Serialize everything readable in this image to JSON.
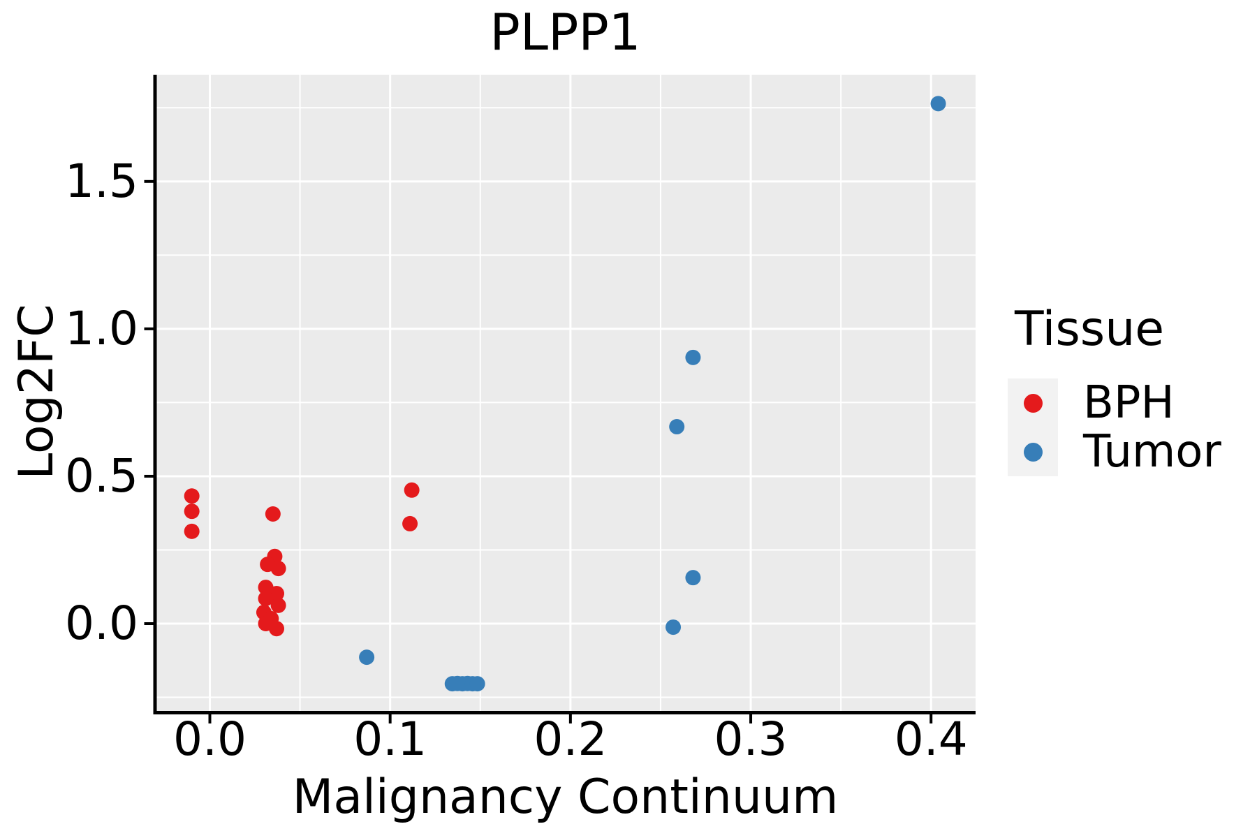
{
  "chart_data": {
    "type": "scatter",
    "title": "PLPP1",
    "xlabel": "Malignancy Continuum",
    "ylabel": "Log2FC",
    "legend_title": "Tissue",
    "legend_position": "right",
    "grid": true,
    "xlim": [
      -0.0304,
      0.4247
    ],
    "ylim": [
      -0.302,
      1.862
    ],
    "x_ticks": [
      0.0,
      0.1,
      0.2,
      0.3,
      0.4
    ],
    "x_tick_labels": [
      "0.0",
      "0.1",
      "0.2",
      "0.3",
      "0.4"
    ],
    "y_ticks": [
      0.0,
      0.5,
      1.0,
      1.5
    ],
    "y_tick_labels": [
      "0.0",
      "0.5",
      "1.0",
      "1.5"
    ],
    "x_minor_ticks": [
      0.05,
      0.15,
      0.25,
      0.35
    ],
    "y_minor_ticks": [
      -0.25,
      0.25,
      0.75,
      1.25,
      1.75
    ],
    "series": [
      {
        "name": "BPH",
        "color": "#E41A1C",
        "points": [
          [
            -0.01,
            0.433
          ],
          [
            -0.01,
            0.381
          ],
          [
            -0.01,
            0.313
          ],
          [
            0.035,
            0.372
          ],
          [
            0.036,
            0.228
          ],
          [
            0.032,
            0.201
          ],
          [
            0.038,
            0.187
          ],
          [
            0.031,
            0.123
          ],
          [
            0.037,
            0.102
          ],
          [
            0.031,
            0.085
          ],
          [
            0.038,
            0.062
          ],
          [
            0.03,
            0.038
          ],
          [
            0.034,
            0.017
          ],
          [
            0.031,
            0.0
          ],
          [
            0.037,
            -0.017
          ],
          [
            0.112,
            0.453
          ],
          [
            0.111,
            0.339
          ]
        ]
      },
      {
        "name": "Tumor",
        "color": "#377EB8",
        "points": [
          [
            0.087,
            -0.114
          ],
          [
            0.1345,
            -0.204
          ],
          [
            0.1373,
            -0.203
          ],
          [
            0.1401,
            -0.204
          ],
          [
            0.1429,
            -0.203
          ],
          [
            0.1457,
            -0.204
          ],
          [
            0.1484,
            -0.204
          ],
          [
            0.259,
            0.668
          ],
          [
            0.268,
            0.903
          ],
          [
            0.268,
            0.156
          ],
          [
            0.257,
            -0.012
          ],
          [
            0.404,
            1.764
          ]
        ]
      }
    ]
  },
  "colors": {
    "panel_background": "#EBEBEB",
    "grid_line": "#FFFFFF",
    "axis_line": "#000000",
    "tick_mark": "#000000",
    "legend_key_background": "#F2F2F2",
    "bph": "#E41A1C",
    "tumor": "#377EB8"
  }
}
